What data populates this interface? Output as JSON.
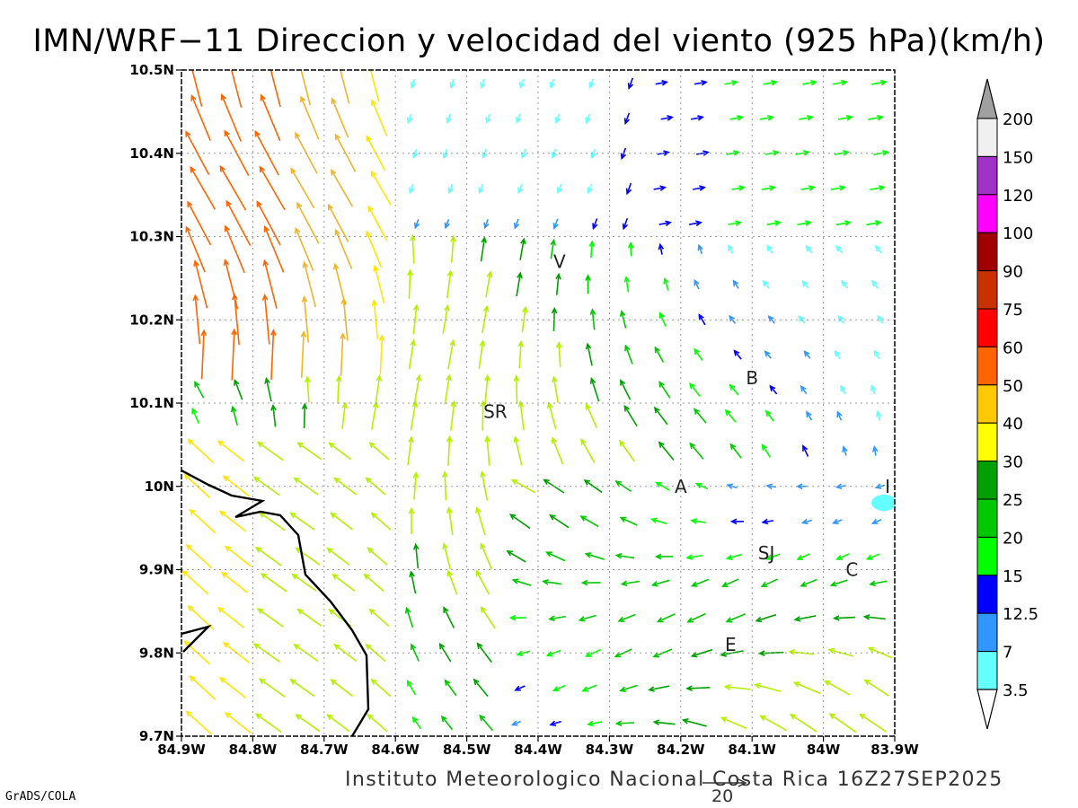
{
  "title": "IMN/WRF−11 Direccion y velocidad del viento (925 hPa)(km/h)",
  "footer": "Instituto Meteorologico Nacional Costa Rica 16Z27SEP2025",
  "credit": "GrADS/COLA",
  "reference_vector": "20",
  "axes": {
    "x_ticks": [
      "84.9W",
      "84.8W",
      "84.7W",
      "84.6W",
      "84.5W",
      "84.4W",
      "84.3W",
      "84.2W",
      "84.1W",
      "84W",
      "83.9W"
    ],
    "y_ticks": [
      "10.5N",
      "10.4N",
      "10.3N",
      "10.2N",
      "10.1N",
      "10N",
      "9.9N",
      "9.8N",
      "9.7N"
    ],
    "lon_range": [
      -84.9,
      -83.9
    ],
    "lat_range": [
      9.7,
      10.5
    ],
    "grid": true
  },
  "cities": [
    {
      "label": "V",
      "lon": -84.37,
      "lat": 10.27
    },
    {
      "label": "SR",
      "lon": -84.46,
      "lat": 10.09
    },
    {
      "label": "B",
      "lon": -84.1,
      "lat": 10.13
    },
    {
      "label": "A",
      "lon": -84.2,
      "lat": 10.0
    },
    {
      "label": "I",
      "lon": -83.91,
      "lat": 10.0
    },
    {
      "label": "SJ",
      "lon": -84.08,
      "lat": 9.92
    },
    {
      "label": "C",
      "lon": -83.96,
      "lat": 9.9
    },
    {
      "label": "E",
      "lon": -84.13,
      "lat": 9.81
    }
  ],
  "colorbar": {
    "labels": [
      "200",
      "150",
      "120",
      "100",
      "90",
      "75",
      "60",
      "50",
      "40",
      "30",
      "25",
      "20",
      "15",
      "12.5",
      "7",
      "3.5"
    ],
    "colors": [
      "#f0f0f0",
      "#a032c8",
      "#ff00ff",
      "#a00000",
      "#c83200",
      "#ff0000",
      "#ff6400",
      "#ffc800",
      "#ffff00",
      "#00a000",
      "#00c800",
      "#00ff00",
      "#0000ff",
      "#3296ff",
      "#64ffff"
    ],
    "over_color": "#a0a0a0",
    "under_color": "#ffffff"
  }
}
